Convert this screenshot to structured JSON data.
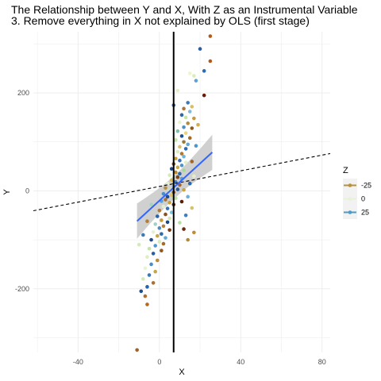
{
  "chart_data": {
    "type": "scatter",
    "title_line1": "The Relationship between Y and X, With Z as an Instrumental Variable",
    "title_line2": "3. Remove everything in X not explained by OLS (first stage)",
    "xlabel": "X",
    "ylabel": "Y",
    "xlim": [
      -62,
      84
    ],
    "ylim": [
      -330,
      325
    ],
    "x_ticks": [
      -40,
      0,
      40,
      80
    ],
    "x_tick_labels": [
      "-40",
      "0",
      "40",
      "80"
    ],
    "y_ticks": [
      -200,
      0,
      200
    ],
    "y_tick_labels": [
      "-200",
      "0",
      "200"
    ],
    "grid": true,
    "legend": {
      "title": "Z",
      "position": "right",
      "entries": [
        {
          "label": "-25",
          "color": "#b8913c"
        },
        {
          "label": "0",
          "color": "#e8f2d9"
        },
        {
          "label": "25",
          "color": "#4f9ac9"
        }
      ]
    },
    "vertical_line": {
      "x": 7,
      "color": "#000000"
    },
    "dashed_line": {
      "slope": 0.8,
      "intercept": 9,
      "color": "#000000"
    },
    "fit_line": {
      "x_range": [
        -11,
        26
      ],
      "slope": 3.8,
      "intercept": -20,
      "se_intercept": 12,
      "se_slope": 0.75,
      "color": "#3366ff",
      "band_color": "#c8c8c8"
    },
    "points": [
      {
        "x": 25,
        "y": 316,
        "color": "#b35a1a"
      },
      {
        "x": 20,
        "y": 290,
        "color": "#2c5d9e"
      },
      {
        "x": 25,
        "y": 265,
        "color": "#b35a1a"
      },
      {
        "x": 22,
        "y": 245,
        "color": "#2c6db0"
      },
      {
        "x": 15,
        "y": 240,
        "color": "#f0f5c8"
      },
      {
        "x": 17,
        "y": 235,
        "color": "#d9efb5"
      },
      {
        "x": 18,
        "y": 225,
        "color": "#5ea3d4"
      },
      {
        "x": 22,
        "y": 195,
        "color": "#6b1a0a"
      },
      {
        "x": 14,
        "y": 180,
        "color": "#3a78bf"
      },
      {
        "x": 16,
        "y": 172,
        "color": "#d8c060"
      },
      {
        "x": 12,
        "y": 168,
        "color": "#a87838"
      },
      {
        "x": 15,
        "y": 162,
        "color": "#7fbce0"
      },
      {
        "x": 11,
        "y": 155,
        "color": "#2f68aa"
      },
      {
        "x": 13,
        "y": 150,
        "color": "#c8e6a0"
      },
      {
        "x": 17,
        "y": 148,
        "color": "#c49a3c"
      },
      {
        "x": 10,
        "y": 140,
        "color": "#e9f3cd"
      },
      {
        "x": 14,
        "y": 138,
        "color": "#b8893a"
      },
      {
        "x": 12,
        "y": 130,
        "color": "#4a90c8"
      },
      {
        "x": 16,
        "y": 128,
        "color": "#8a5a20"
      },
      {
        "x": 9,
        "y": 122,
        "color": "#7cc0b0"
      },
      {
        "x": 13,
        "y": 118,
        "color": "#e8d680"
      },
      {
        "x": 11,
        "y": 112,
        "color": "#1f5090"
      },
      {
        "x": 15,
        "y": 108,
        "color": "#a56a2a"
      },
      {
        "x": 8,
        "y": 104,
        "color": "#c6e5a8"
      },
      {
        "x": 12,
        "y": 100,
        "color": "#9a7a30"
      },
      {
        "x": 14,
        "y": 95,
        "color": "#5fa8d8"
      },
      {
        "x": 10,
        "y": 90,
        "color": "#d4c070"
      },
      {
        "x": 13,
        "y": 86,
        "color": "#2d6cae"
      },
      {
        "x": 9,
        "y": 80,
        "color": "#dceec0"
      },
      {
        "x": 11,
        "y": 76,
        "color": "#b07a30"
      },
      {
        "x": 12,
        "y": 70,
        "color": "#6fb5d8"
      },
      {
        "x": 8,
        "y": 66,
        "color": "#c0a040"
      },
      {
        "x": 10,
        "y": 62,
        "color": "#3570b5"
      },
      {
        "x": 13,
        "y": 58,
        "color": "#e0efc8"
      },
      {
        "x": 7,
        "y": 55,
        "color": "#8a5520"
      },
      {
        "x": 11,
        "y": 52,
        "color": "#4c94cc"
      },
      {
        "x": 9,
        "y": 48,
        "color": "#c8a848"
      },
      {
        "x": 6,
        "y": 45,
        "color": "#1c4a88"
      },
      {
        "x": 12,
        "y": 42,
        "color": "#a8d898"
      },
      {
        "x": 8,
        "y": 38,
        "color": "#b88a38"
      },
      {
        "x": 10,
        "y": 35,
        "color": "#2868b0"
      },
      {
        "x": 5,
        "y": 32,
        "color": "#d6ebb8"
      },
      {
        "x": 9,
        "y": 28,
        "color": "#7c4818"
      },
      {
        "x": 11,
        "y": 25,
        "color": "#58a0d2"
      },
      {
        "x": 6,
        "y": 22,
        "color": "#d0b458"
      },
      {
        "x": 8,
        "y": 18,
        "color": "#3a7cc0"
      },
      {
        "x": 4,
        "y": 15,
        "color": "#e4f0cc"
      },
      {
        "x": 10,
        "y": 12,
        "color": "#a06828"
      },
      {
        "x": 7,
        "y": 9,
        "color": "#6eb8d6"
      },
      {
        "x": 3,
        "y": 6,
        "color": "#b89040"
      },
      {
        "x": 9,
        "y": 3,
        "color": "#265a9c"
      },
      {
        "x": 5,
        "y": 0,
        "color": "#cde8b0"
      },
      {
        "x": 7,
        "y": -3,
        "color": "#8c5a22"
      },
      {
        "x": 2,
        "y": -6,
        "color": "#4a8ec8"
      },
      {
        "x": 6,
        "y": -9,
        "color": "#dcc468"
      },
      {
        "x": 4,
        "y": -12,
        "color": "#1e4c8e"
      },
      {
        "x": 8,
        "y": -15,
        "color": "#bfe2a4"
      },
      {
        "x": 3,
        "y": -18,
        "color": "#a87030"
      },
      {
        "x": 1,
        "y": -21,
        "color": "#5aa2d4"
      },
      {
        "x": 5,
        "y": -24,
        "color": "#c4a044"
      },
      {
        "x": 7,
        "y": -28,
        "color": "#6a2e10"
      },
      {
        "x": 2,
        "y": -32,
        "color": "#e2efcb"
      },
      {
        "x": 4,
        "y": -36,
        "color": "#3474ba"
      },
      {
        "x": 0,
        "y": -40,
        "color": "#b07c34"
      },
      {
        "x": 6,
        "y": -44,
        "color": "#80c4dc"
      },
      {
        "x": 3,
        "y": -48,
        "color": "#8a5020"
      },
      {
        "x": -1,
        "y": -52,
        "color": "#2a64a8"
      },
      {
        "x": 5,
        "y": -56,
        "color": "#d2e9b4"
      },
      {
        "x": 1,
        "y": -60,
        "color": "#c09c40"
      },
      {
        "x": 4,
        "y": -64,
        "color": "#1a4686"
      },
      {
        "x": -2,
        "y": -68,
        "color": "#9ed4c8"
      },
      {
        "x": 2,
        "y": -72,
        "color": "#b5823a"
      },
      {
        "x": 0,
        "y": -76,
        "color": "#4a8cc6"
      },
      {
        "x": 5,
        "y": -80,
        "color": "#7a3a14"
      },
      {
        "x": -3,
        "y": -84,
        "color": "#e6f2ce"
      },
      {
        "x": 1,
        "y": -88,
        "color": "#3068ae"
      },
      {
        "x": -1,
        "y": -92,
        "color": "#c8a64a"
      },
      {
        "x": 3,
        "y": -96,
        "color": "#62aad6"
      },
      {
        "x": -4,
        "y": -100,
        "color": "#1c4888"
      },
      {
        "x": 0,
        "y": -104,
        "color": "#d8ecbc"
      },
      {
        "x": 2,
        "y": -108,
        "color": "#a66c2c"
      },
      {
        "x": -2,
        "y": -112,
        "color": "#5098cc"
      },
      {
        "x": -5,
        "y": -118,
        "color": "#c2e4a8"
      },
      {
        "x": 1,
        "y": -122,
        "color": "#8e5a24"
      },
      {
        "x": -3,
        "y": -128,
        "color": "#2a5ea2"
      },
      {
        "x": -6,
        "y": -135,
        "color": "#dfeec6"
      },
      {
        "x": -1,
        "y": -142,
        "color": "#b88c3c"
      },
      {
        "x": -4,
        "y": -150,
        "color": "#4690c8"
      },
      {
        "x": -7,
        "y": -158,
        "color": "#e9f3d0"
      },
      {
        "x": -2,
        "y": -165,
        "color": "#c8a448"
      },
      {
        "x": -5,
        "y": -172,
        "color": "#3a7ab8"
      },
      {
        "x": -8,
        "y": -180,
        "color": "#d2ebb6"
      },
      {
        "x": -3,
        "y": -188,
        "color": "#aa7230"
      },
      {
        "x": -6,
        "y": -196,
        "color": "#2a62a6"
      },
      {
        "x": -9,
        "y": -205,
        "color": "#1e4c8c"
      },
      {
        "x": -7,
        "y": -215,
        "color": "#a87434"
      },
      {
        "x": -6,
        "y": -232,
        "color": "#b06a24"
      },
      {
        "x": -11,
        "y": -325,
        "color": "#a0622a"
      },
      {
        "x": 17,
        "y": -85,
        "color": "#c28c34"
      },
      {
        "x": 14,
        "y": -100,
        "color": "#b08a3a"
      },
      {
        "x": 12,
        "y": -78,
        "color": "#6a2a0e"
      },
      {
        "x": 10,
        "y": -65,
        "color": "#b8e0a0"
      },
      {
        "x": 13,
        "y": -50,
        "color": "#3d7fc0"
      },
      {
        "x": 16,
        "y": -35,
        "color": "#d4c26e"
      },
      {
        "x": 11,
        "y": -22,
        "color": "#5d1e08"
      },
      {
        "x": 14,
        "y": -12,
        "color": "#6ab0d8"
      },
      {
        "x": 12,
        "y": 2,
        "color": "#c6a448"
      },
      {
        "x": 15,
        "y": 15,
        "color": "#2d66aa"
      },
      {
        "x": 17,
        "y": 30,
        "color": "#e2efc8"
      },
      {
        "x": 16,
        "y": 60,
        "color": "#a2662a"
      },
      {
        "x": 18,
        "y": 92,
        "color": "#4e96cb"
      },
      {
        "x": 19,
        "y": 135,
        "color": "#cdb052"
      },
      {
        "x": 7,
        "y": 175,
        "color": "#2562a8"
      },
      {
        "x": 9,
        "y": 205,
        "color": "#e4f0ca"
      },
      {
        "x": -4,
        "y": -28,
        "color": "#a0d6c0"
      },
      {
        "x": -6,
        "y": -62,
        "color": "#b07e36"
      },
      {
        "x": -8,
        "y": -90,
        "color": "#3c7cbc"
      },
      {
        "x": -10,
        "y": -110,
        "color": "#d6eab8"
      }
    ]
  }
}
